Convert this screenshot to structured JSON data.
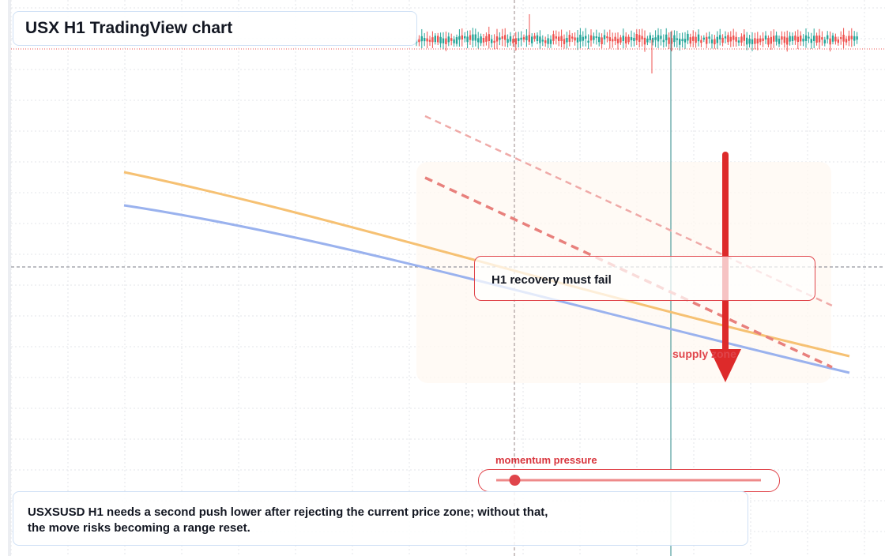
{
  "title": "USX H1 TradingView chart",
  "callout_text": "H1 recovery must fail",
  "zone_label": "supply zone",
  "indicator_label": "momentum pressure",
  "summary": {
    "line1": "USXSUSD H1 needs a second push lower after rejecting the current price zone; without that,",
    "line2": "the move risks becoming a range reset."
  },
  "colors": {
    "up_candle": "#26a69a",
    "down_candle": "#ef5350",
    "bearish": "#e0454b",
    "arrow": "#dd2a2a",
    "ma_orange": "#f6c173",
    "ma_blue": "#9ab2ee",
    "cursor_line": "#2e8a8a",
    "zone_fill": "#fff8f1"
  },
  "chart_data": {
    "type": "candlestick",
    "title": "USX H1 TradingView chart",
    "xlabel": "",
    "ylabel": "",
    "grid": true,
    "legend": "none",
    "direction": "bearish",
    "momentum_pressure": 0.1,
    "series": [
      {
        "values": [
          100,
          80
        ]
      },
      {
        "values": [
          86,
          51
        ]
      }
    ]
  }
}
